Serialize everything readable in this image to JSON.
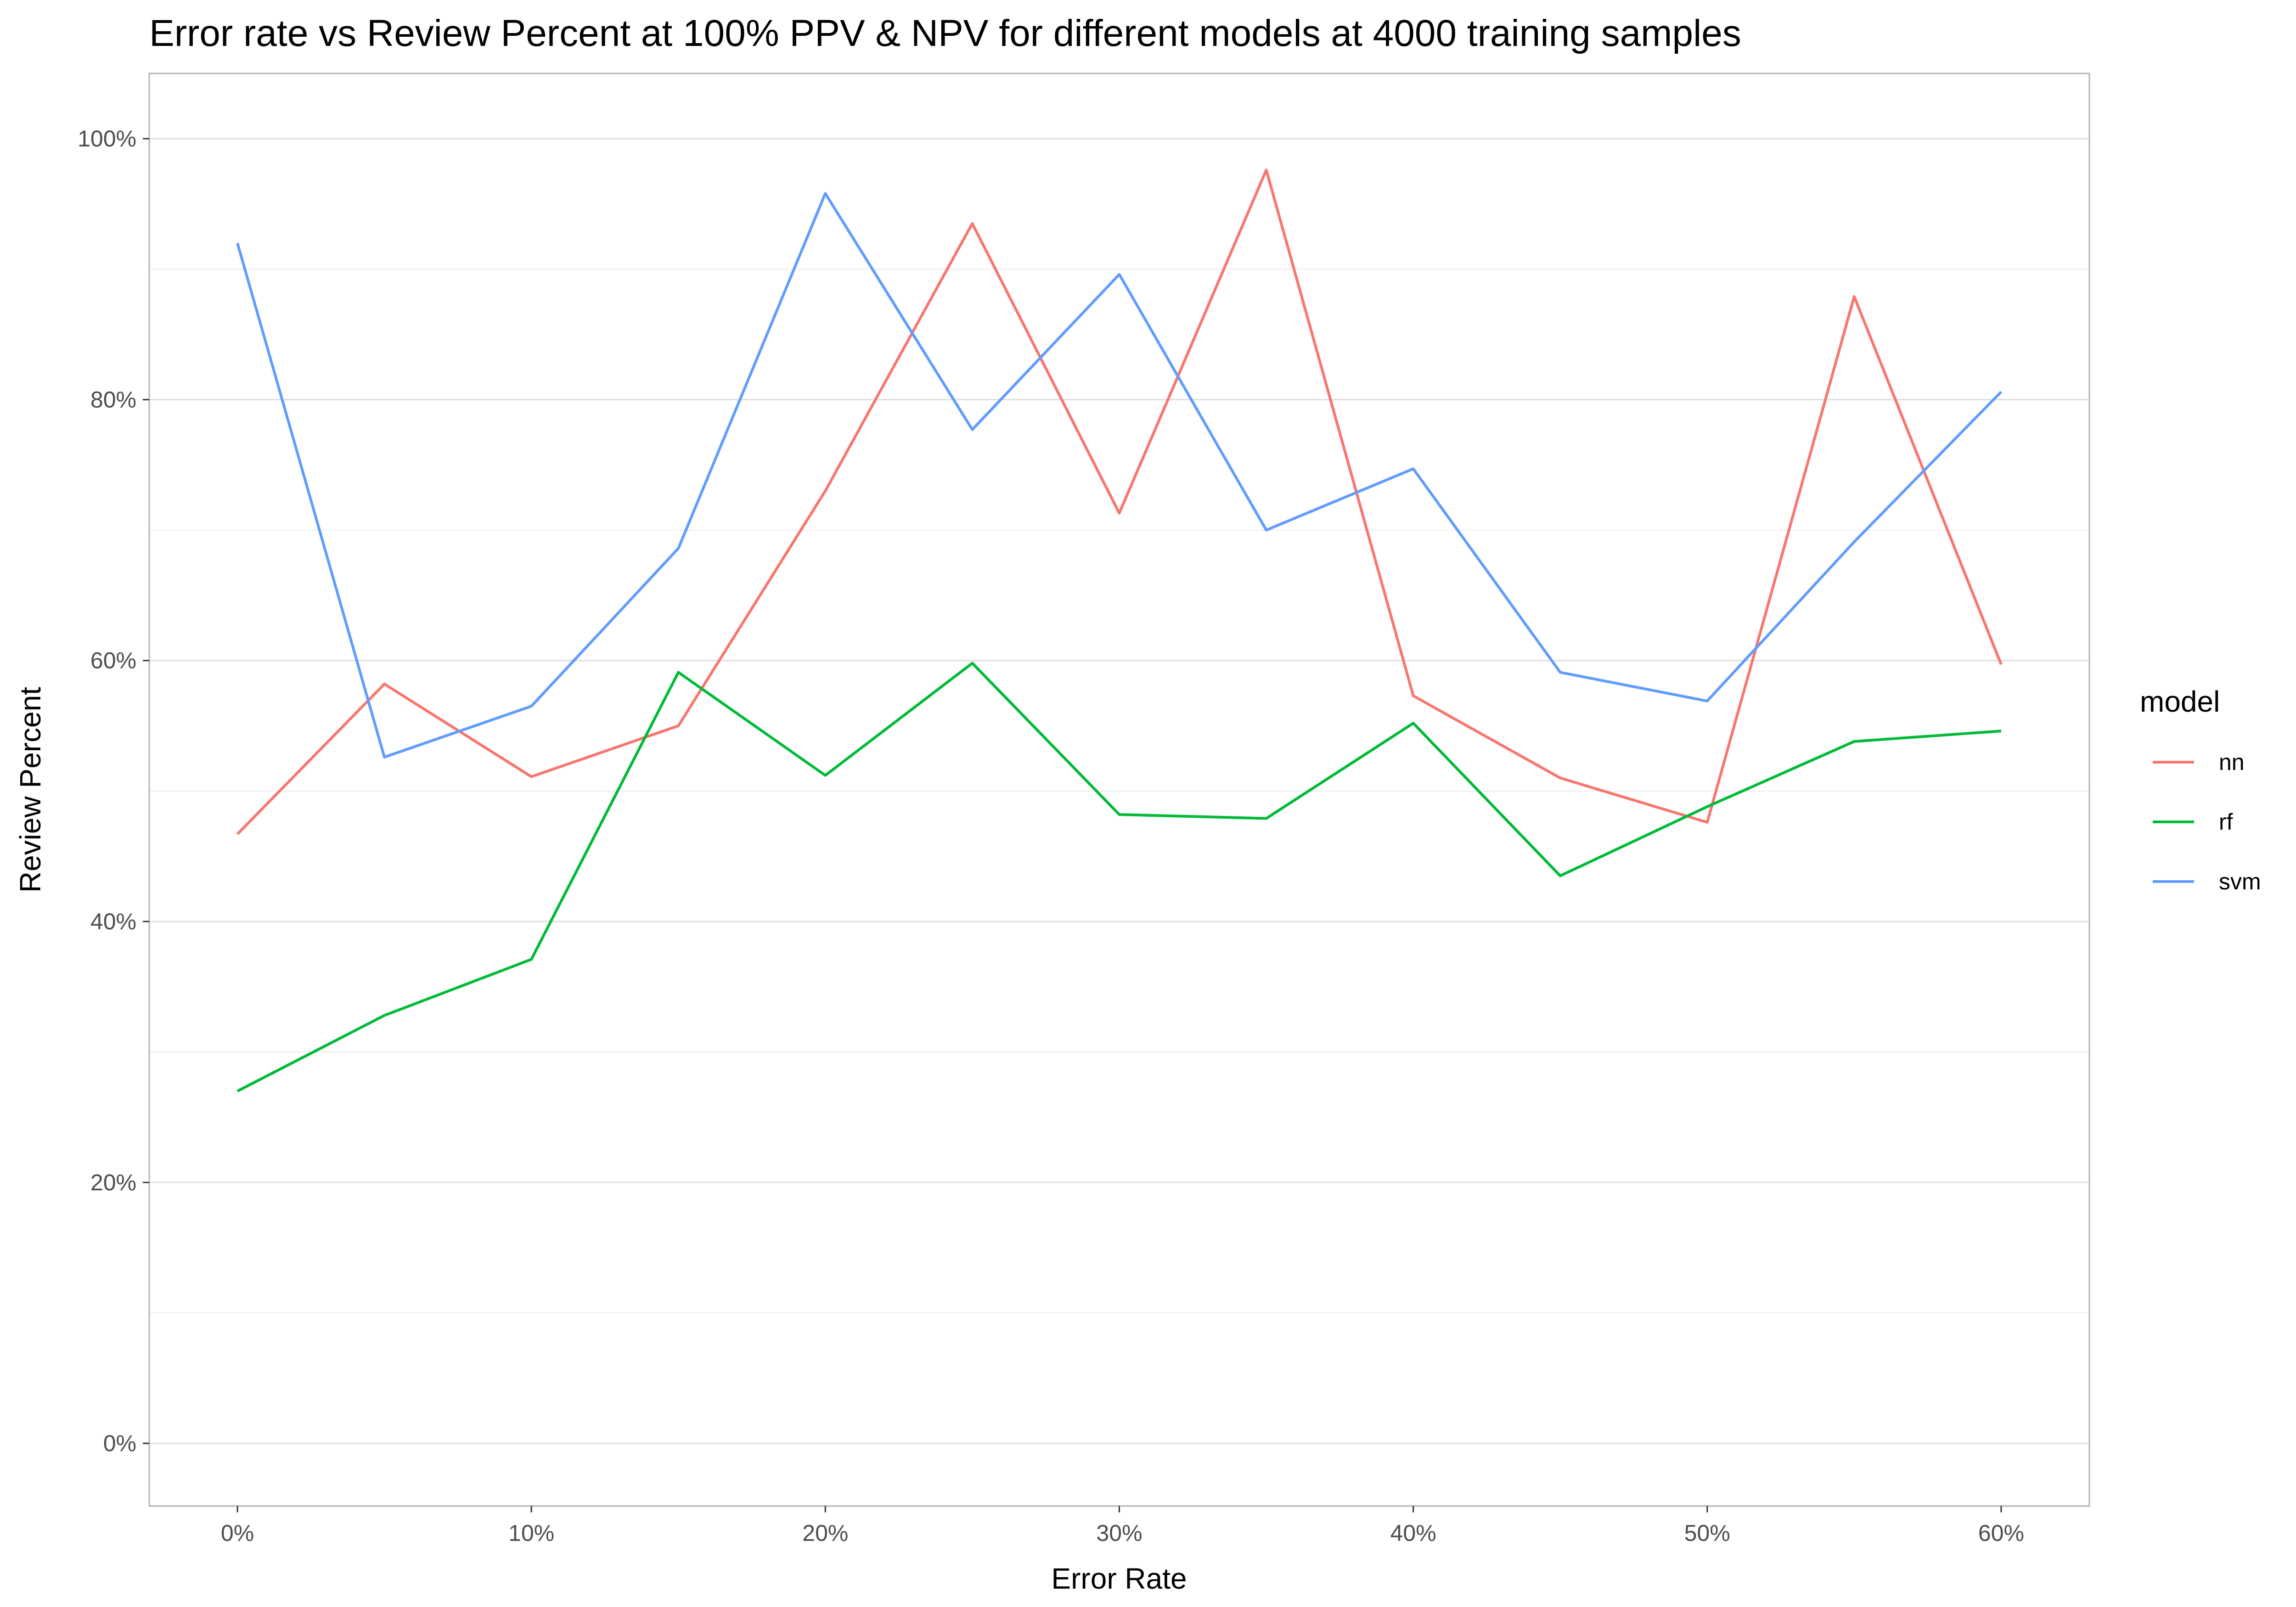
{
  "chart_data": {
    "type": "line",
    "title": "Error rate vs Review Percent at 100% PPV & NPV for different models at 4000 training samples",
    "xlabel": "Error Rate",
    "ylabel": "Review Percent",
    "x": [
      0,
      5,
      10,
      15,
      20,
      25,
      30,
      35,
      40,
      45,
      50,
      55,
      60
    ],
    "x_ticks": [
      0,
      10,
      20,
      30,
      40,
      50,
      60
    ],
    "x_tick_labels": [
      "0%",
      "10%",
      "20%",
      "30%",
      "40%",
      "50%",
      "60%"
    ],
    "y_ticks": [
      0,
      20,
      40,
      60,
      80,
      100
    ],
    "y_tick_labels": [
      "0%",
      "20%",
      "40%",
      "60%",
      "80%",
      "100%"
    ],
    "xlim": [
      -3,
      63
    ],
    "ylim": [
      -4.8,
      105
    ],
    "grid": true,
    "legend_position": "right",
    "legend_title": "model",
    "series": [
      {
        "name": "nn",
        "color": "#F8766D",
        "values": [
          46.7,
          58.2,
          51.1,
          55.0,
          73.0,
          93.5,
          71.3,
          97.6,
          57.3,
          51.0,
          47.6,
          87.9,
          59.7
        ]
      },
      {
        "name": "rf",
        "color": "#00BA38",
        "values": [
          27.0,
          32.8,
          37.1,
          59.1,
          51.2,
          59.8,
          48.2,
          47.9,
          55.2,
          43.5,
          48.8,
          53.8,
          54.6
        ]
      },
      {
        "name": "svm",
        "color": "#619CFF",
        "values": [
          92.0,
          52.6,
          56.5,
          68.6,
          95.8,
          77.7,
          89.6,
          70.0,
          74.7,
          59.1,
          56.9,
          69.1,
          80.6
        ]
      }
    ]
  }
}
